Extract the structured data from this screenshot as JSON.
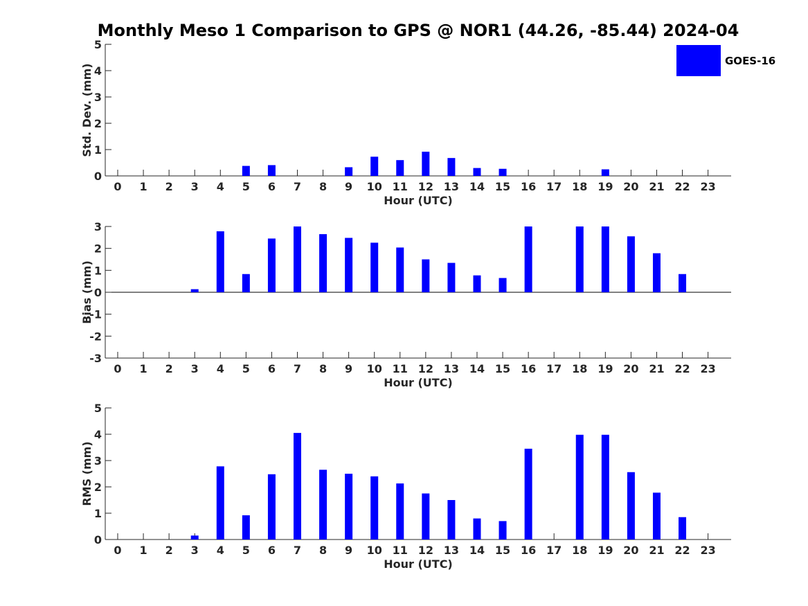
{
  "title": "Monthly Meso 1 Comparison to GPS @ NOR1 (44.26, -85.44) 2024-04",
  "colors": {
    "bar": "#0000ff",
    "axis": "#262626"
  },
  "chart_data": [
    {
      "type": "bar",
      "ylabel": "Std. Dev. (mm)",
      "xlabel": "Hour (UTC)",
      "ylim": [
        0,
        5
      ],
      "yticks": [
        "0",
        "1",
        "2",
        "3",
        "4",
        "5"
      ],
      "categories": [
        "0",
        "1",
        "2",
        "3",
        "4",
        "5",
        "6",
        "7",
        "8",
        "9",
        "10",
        "11",
        "12",
        "13",
        "14",
        "15",
        "16",
        "17",
        "18",
        "19",
        "20",
        "21",
        "22",
        "23"
      ],
      "series": [
        {
          "name": "GOES-16",
          "values": [
            0,
            0,
            0,
            0,
            0,
            0.38,
            0.41,
            0,
            0,
            0.33,
            0.73,
            0.6,
            0.92,
            0.68,
            0.3,
            0.27,
            0,
            0,
            0,
            0.25,
            0,
            0,
            0,
            0
          ]
        }
      ],
      "legend": {
        "position": "top-right",
        "entries": [
          "GOES-16"
        ]
      },
      "grid": false
    },
    {
      "type": "bar",
      "ylabel": "Bias (mm)",
      "xlabel": "Hour (UTC)",
      "ylim": [
        -3,
        3
      ],
      "yticks": [
        "-3",
        "-2",
        "-1",
        "0",
        "1",
        "2",
        "3"
      ],
      "categories": [
        "0",
        "1",
        "2",
        "3",
        "4",
        "5",
        "6",
        "7",
        "8",
        "9",
        "10",
        "11",
        "12",
        "13",
        "14",
        "15",
        "16",
        "17",
        "18",
        "19",
        "20",
        "21",
        "22",
        "23"
      ],
      "series": [
        {
          "name": "GOES-16",
          "values": [
            0,
            0,
            0,
            0.14,
            2.78,
            0.83,
            2.45,
            3.0,
            2.65,
            2.48,
            2.26,
            2.04,
            1.5,
            1.34,
            0.77,
            0.65,
            3.0,
            0,
            3.0,
            3.0,
            2.55,
            1.78,
            0.83,
            0
          ]
        }
      ],
      "grid": false
    },
    {
      "type": "bar",
      "ylabel": "RMS (mm)",
      "xlabel": "Hour (UTC)",
      "ylim": [
        0,
        5
      ],
      "yticks": [
        "0",
        "1",
        "2",
        "3",
        "4",
        "5"
      ],
      "categories": [
        "0",
        "1",
        "2",
        "3",
        "4",
        "5",
        "6",
        "7",
        "8",
        "9",
        "10",
        "11",
        "12",
        "13",
        "14",
        "15",
        "16",
        "17",
        "18",
        "19",
        "20",
        "21",
        "22",
        "23"
      ],
      "series": [
        {
          "name": "GOES-16",
          "values": [
            0,
            0,
            0,
            0.15,
            2.78,
            0.92,
            2.48,
            4.05,
            2.65,
            2.5,
            2.4,
            2.13,
            1.75,
            1.5,
            0.8,
            0.7,
            3.45,
            0,
            3.98,
            3.98,
            2.56,
            1.78,
            0.85,
            0
          ]
        }
      ],
      "grid": false
    }
  ]
}
